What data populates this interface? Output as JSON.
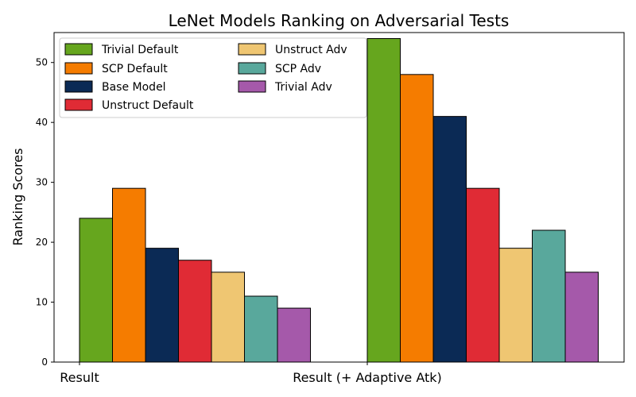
{
  "chart_data": {
    "type": "bar",
    "title": "LeNet Models Ranking on Adversarial Tests",
    "ylabel": "Ranking Scores",
    "xlabel": "",
    "categories": [
      "Result",
      "Result (+ Adaptive Atk)"
    ],
    "ylim": [
      0,
      55
    ],
    "yticks": [
      0,
      10,
      20,
      30,
      40,
      50
    ],
    "grid": false,
    "legend_position": "top-left",
    "legend_columns": 2,
    "series": [
      {
        "name": "Trivial Default",
        "color": "#66a61e",
        "values": [
          24,
          54
        ]
      },
      {
        "name": "SCP Default",
        "color": "#f57c00",
        "values": [
          29,
          48
        ]
      },
      {
        "name": "Base Model",
        "color": "#0b2a55",
        "values": [
          19,
          41
        ]
      },
      {
        "name": "Unstruct Default",
        "color": "#e02b35",
        "values": [
          17,
          29
        ]
      },
      {
        "name": "Unstruct Adv",
        "color": "#efc672",
        "values": [
          15,
          19
        ]
      },
      {
        "name": "SCP Adv",
        "color": "#59a89c",
        "values": [
          11,
          22
        ]
      },
      {
        "name": "Trivial Adv",
        "color": "#a559aa",
        "values": [
          9,
          15
        ]
      }
    ]
  }
}
